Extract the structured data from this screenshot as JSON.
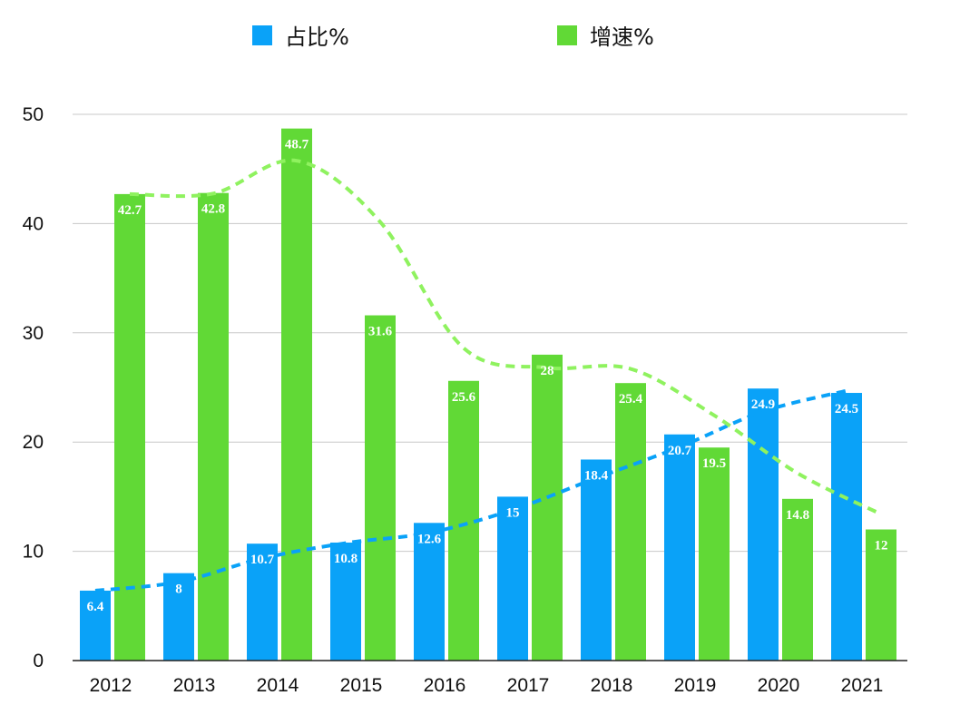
{
  "chart_data": {
    "type": "bar",
    "categories": [
      "2012",
      "2013",
      "2014",
      "2015",
      "2016",
      "2017",
      "2018",
      "2019",
      "2020",
      "2021"
    ],
    "series": [
      {
        "name": "占比%",
        "color": "#0aa2f8",
        "values": [
          6.4,
          8,
          10.7,
          10.8,
          12.6,
          15,
          18.4,
          20.7,
          24.9,
          24.5
        ]
      },
      {
        "name": "增速%",
        "color": "#61d936",
        "values": [
          42.7,
          42.8,
          48.7,
          31.6,
          25.6,
          28,
          25.4,
          19.5,
          14.8,
          12
        ]
      }
    ],
    "trendlines": [
      {
        "series": "占比%",
        "color": "#0aa2f8",
        "style": "dashed",
        "kind": "moving-average"
      },
      {
        "series": "增速%",
        "color": "#8ff25f",
        "style": "dashed",
        "kind": "moving-average"
      }
    ],
    "ylim": [
      0,
      50
    ],
    "yticks": [
      0,
      10,
      20,
      30,
      40,
      50
    ],
    "grid": true,
    "legend_position": "top",
    "data_labels": true,
    "title": "",
    "xlabel": "",
    "ylabel": ""
  }
}
